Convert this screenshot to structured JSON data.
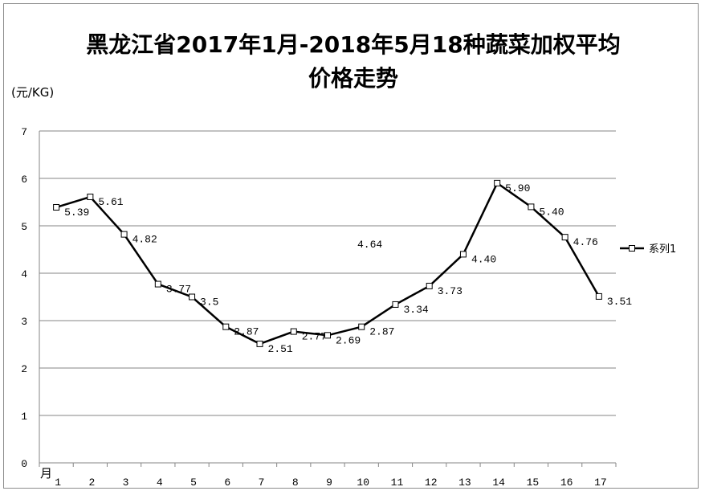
{
  "chart_data": {
    "type": "line",
    "title_line1": "黑龙江省2017年1月-2018年5月18种蔬菜加权平均",
    "title_line2": "价格走势",
    "ylabel": "(元/KG)",
    "xlabel": "月",
    "ylim": [
      0,
      7
    ],
    "yticks": [
      0,
      1,
      2,
      3,
      4,
      5,
      6,
      7
    ],
    "categories": [
      "1",
      "2",
      "3",
      "4",
      "5",
      "6",
      "7",
      "8",
      "9",
      "10",
      "11",
      "12",
      "13",
      "14",
      "15",
      "16",
      "17"
    ],
    "series": [
      {
        "name": "系列1",
        "color": "#000000",
        "values": [
          5.39,
          5.61,
          4.82,
          3.77,
          3.5,
          2.87,
          2.51,
          2.77,
          2.69,
          2.87,
          3.34,
          3.73,
          4.4,
          5.9,
          5.4,
          4.76,
          3.51
        ],
        "labels": [
          "5.39",
          "5.61",
          "4.82",
          "3.77",
          "3.5",
          "2.87",
          "2.51",
          "2.77",
          "2.69",
          "2.87",
          "3.34",
          "3.73",
          "4.40",
          "5.90",
          "5.40",
          "4.76",
          "3.51"
        ]
      }
    ],
    "extra_annotation": "4.64",
    "grid": true,
    "legend_position": "right"
  }
}
